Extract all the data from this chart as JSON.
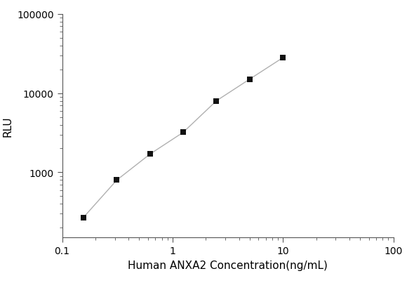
{
  "x_values": [
    0.156,
    0.313,
    0.625,
    1.25,
    2.5,
    5.0,
    10.0
  ],
  "y_values": [
    270,
    800,
    1700,
    3200,
    8000,
    15000,
    28000
  ],
  "xlabel": "Human ANXA2 Concentration(ng/mL)",
  "ylabel": "RLU",
  "xlim": [
    0.1,
    100
  ],
  "ylim": [
    150,
    100000
  ],
  "line_color": "#b0b0b0",
  "marker_color": "#111111",
  "marker": "s",
  "marker_size": 6,
  "line_width": 1.0,
  "background_color": "#ffffff",
  "x_ticks": [
    0.1,
    1,
    10,
    100
  ],
  "x_tick_labels": [
    "0.1",
    "1",
    "10",
    "100"
  ],
  "y_ticks": [
    1000,
    10000,
    100000
  ],
  "y_tick_labels": [
    "1000",
    "10000",
    "100000"
  ],
  "xlabel_fontsize": 11,
  "ylabel_fontsize": 11,
  "tick_fontsize": 10
}
